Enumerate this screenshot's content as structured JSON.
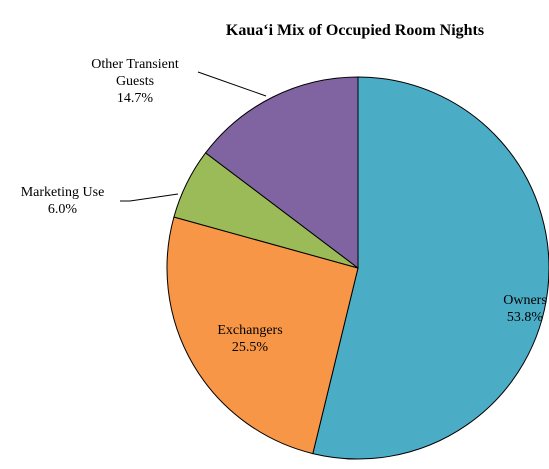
{
  "chart_data": {
    "type": "pie",
    "title": "Kaua‘i Mix of Occupied Room Nights",
    "categories": [
      "Owners",
      "Exchangers",
      "Marketing Use",
      "Other Transient Guests"
    ],
    "values": [
      53.8,
      25.5,
      6.0,
      14.7
    ],
    "value_labels": [
      "53.8%",
      "25.5%",
      "6.0%",
      "14.7%"
    ],
    "colors": [
      "#4bacc6",
      "#f79646",
      "#9bbb59",
      "#8064a2"
    ]
  }
}
